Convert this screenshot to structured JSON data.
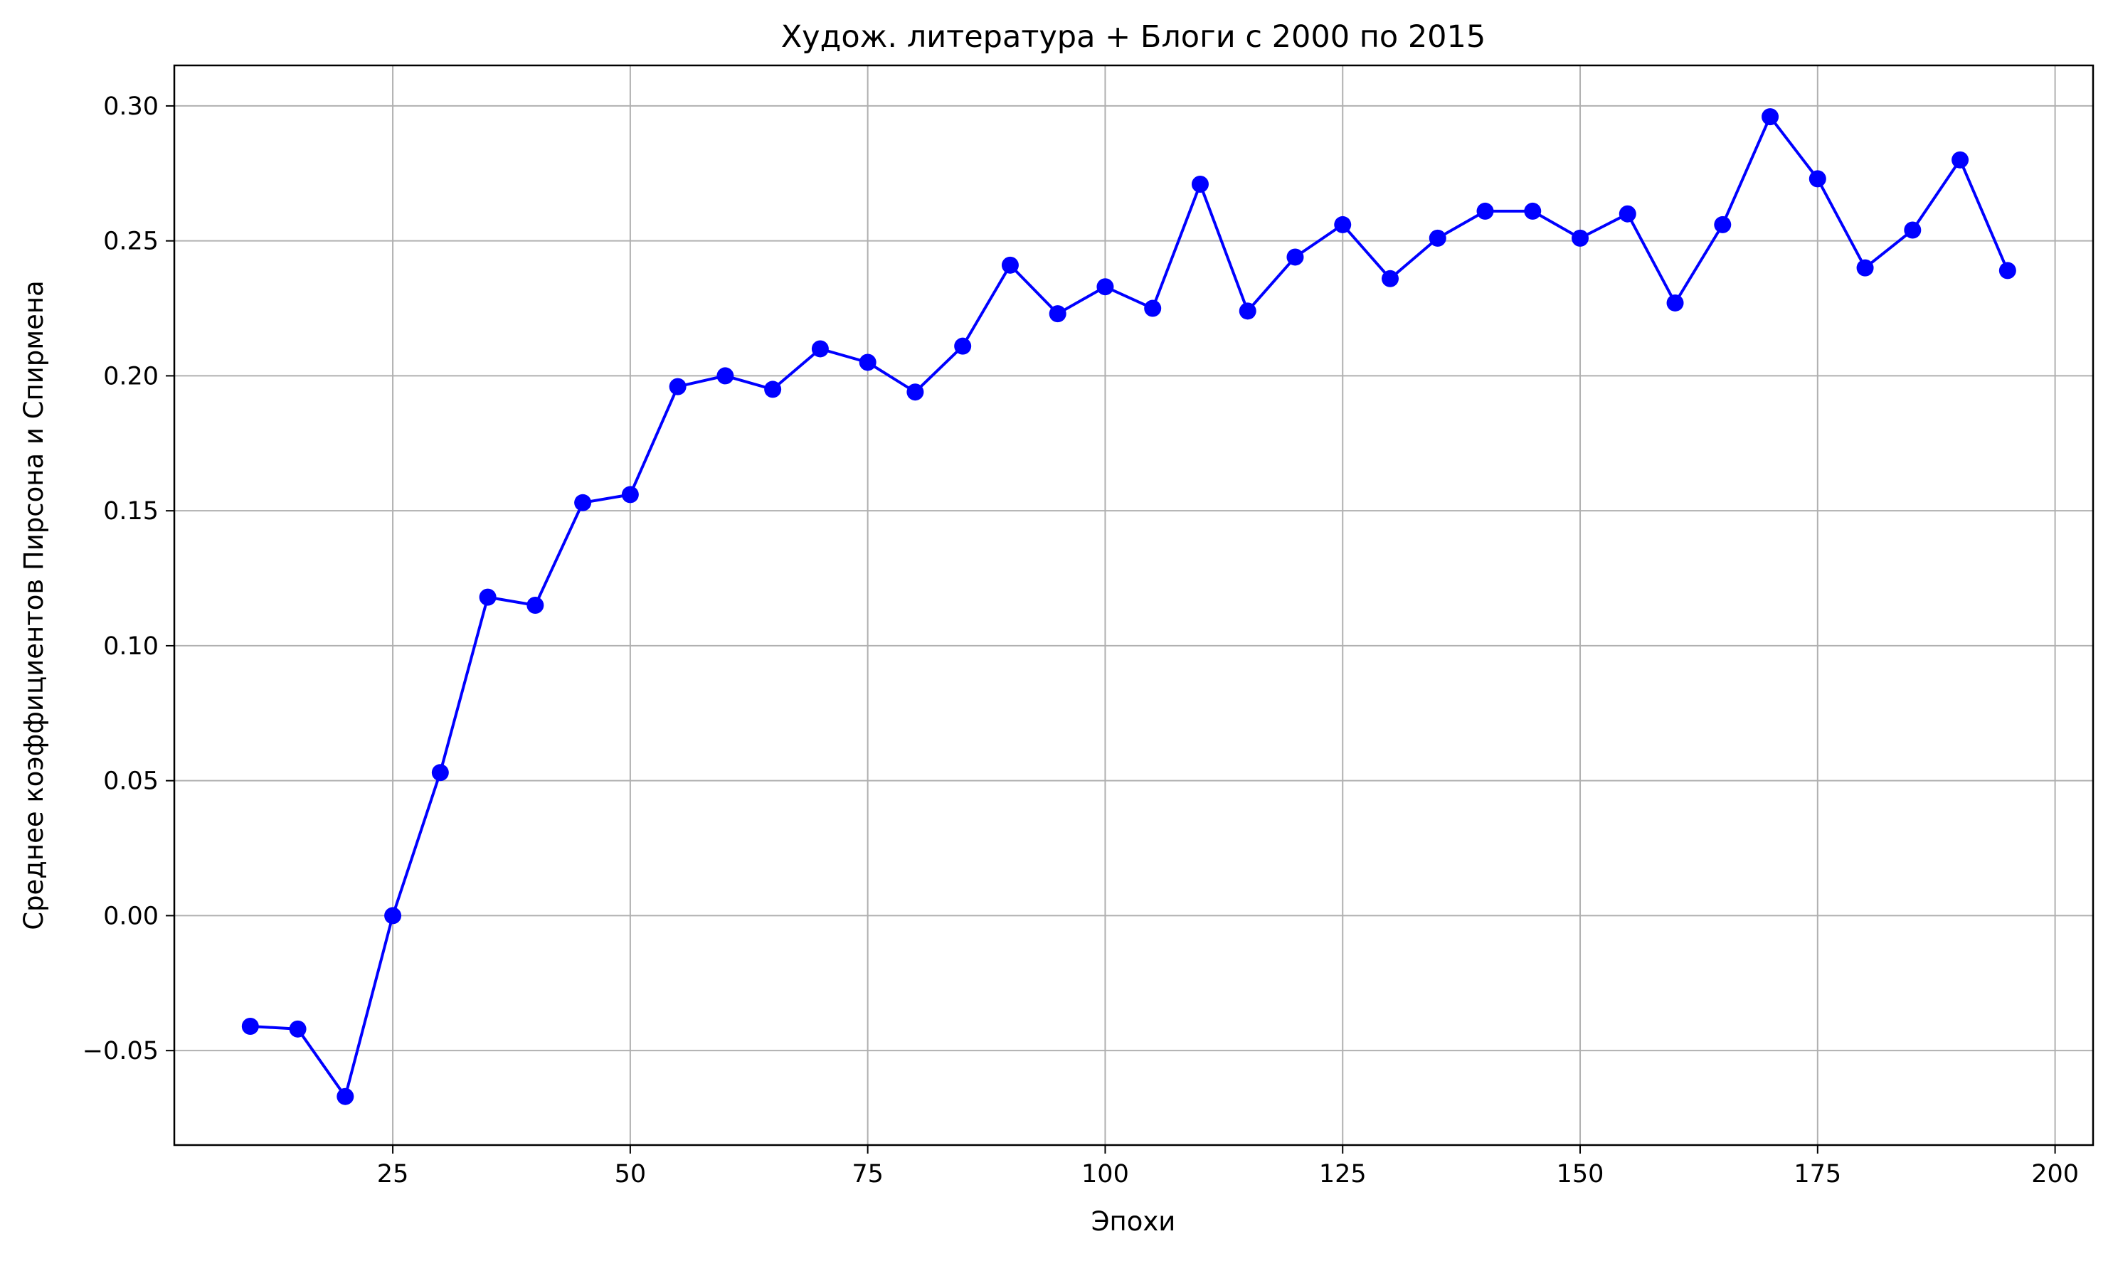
{
  "chart_data": {
    "type": "line",
    "title": "Худож. литература + Блоги с 2000 по 2015",
    "xlabel": "Эпохи",
    "ylabel": "Среднее коэффициентов Пирсона и Спирмена",
    "xlim": [
      2,
      204
    ],
    "ylim": [
      -0.085,
      0.315
    ],
    "xticks": [
      25,
      50,
      75,
      100,
      125,
      150,
      175,
      200
    ],
    "xtick_labels": [
      "25",
      "50",
      "75",
      "100",
      "125",
      "150",
      "175",
      "200"
    ],
    "yticks": [
      -0.05,
      0.0,
      0.05,
      0.1,
      0.15,
      0.2,
      0.25,
      0.3
    ],
    "ytick_labels": [
      "−0.05",
      "0.00",
      "0.05",
      "0.10",
      "0.15",
      "0.20",
      "0.25",
      "0.30"
    ],
    "grid": true,
    "series": [
      {
        "color": "#0000ff",
        "marker": "circle",
        "x": [
          10,
          15,
          20,
          25,
          30,
          35,
          40,
          45,
          50,
          55,
          60,
          65,
          70,
          75,
          80,
          85,
          90,
          95,
          100,
          105,
          110,
          115,
          120,
          125,
          130,
          135,
          140,
          145,
          150,
          155,
          160,
          165,
          170,
          175,
          180,
          185,
          190,
          195
        ],
        "y": [
          -0.041,
          -0.042,
          -0.067,
          0.0,
          0.053,
          0.118,
          0.115,
          0.153,
          0.156,
          0.196,
          0.2,
          0.195,
          0.21,
          0.205,
          0.194,
          0.211,
          0.241,
          0.223,
          0.233,
          0.225,
          0.271,
          0.224,
          0.244,
          0.256,
          0.236,
          0.251,
          0.261,
          0.261,
          0.251,
          0.26,
          0.227,
          0.256,
          0.296,
          0.273,
          0.24,
          0.254,
          0.28,
          0.239
        ]
      }
    ]
  }
}
